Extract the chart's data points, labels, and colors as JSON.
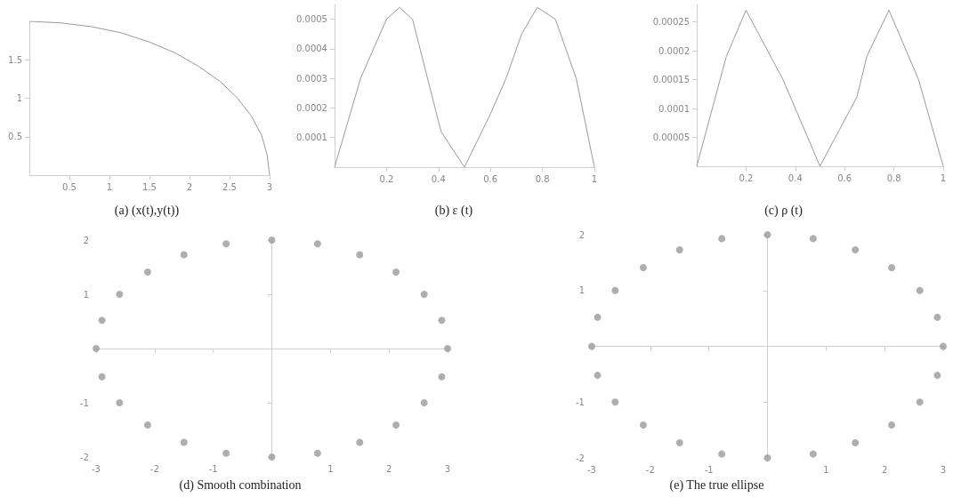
{
  "chart_data": [
    {
      "type": "line",
      "title": "(a) (x(t),y(t))",
      "color": "#9a9a9a",
      "xlim": [
        0,
        3
      ],
      "ylim": [
        0,
        2
      ],
      "xticks": [
        0.5,
        1,
        1.5,
        2,
        2.5,
        3
      ],
      "yticks": [
        0.5,
        1,
        1.5
      ],
      "x": [
        0,
        0.39,
        0.78,
        1.15,
        1.5,
        1.82,
        2.12,
        2.38,
        2.6,
        2.77,
        2.9,
        2.97,
        3
      ],
      "values": [
        2,
        1.98,
        1.93,
        1.85,
        1.73,
        1.59,
        1.41,
        1.22,
        1,
        0.77,
        0.52,
        0.26,
        0
      ]
    },
    {
      "type": "line",
      "title": "(b) ε (t)",
      "color": "#9a9a9a",
      "xlim": [
        0,
        1
      ],
      "ylim": [
        0,
        0.00055
      ],
      "xticks": [
        0.2,
        0.4,
        0.6,
        0.8,
        1
      ],
      "yticks": [
        0.0001,
        0.0002,
        0.0003,
        0.0004,
        0.0005
      ],
      "x": [
        0,
        0.1,
        0.2,
        0.25,
        0.3,
        0.41,
        0.5,
        0.6,
        0.66,
        0.72,
        0.78,
        0.85,
        0.93,
        1
      ],
      "values": [
        0,
        0.0003,
        0.0005,
        0.00054,
        0.0005,
        0.00012,
        0,
        0.00018,
        0.0003,
        0.00045,
        0.00054,
        0.0005,
        0.0003,
        0
      ]
    },
    {
      "type": "line",
      "title": "(c) ρ (t)",
      "color": "#9a9a9a",
      "xlim": [
        0,
        1
      ],
      "ylim": [
        0,
        0.00028
      ],
      "xticks": [
        0.2,
        0.4,
        0.6,
        0.8,
        1
      ],
      "yticks": [
        {
          "value": 5e-05,
          "label": "0.00005"
        },
        0.0001,
        0.00015,
        0.0002,
        0.00025
      ],
      "x": [
        0,
        0.12,
        0.2,
        0.35,
        0.5,
        0.65,
        0.69,
        0.78,
        0.9,
        1
      ],
      "values": [
        0,
        0.00019,
        0.00027,
        0.00015,
        0,
        0.00012,
        0.00019,
        0.00027,
        0.00015,
        0
      ]
    },
    {
      "type": "scatter",
      "marker": "circle",
      "title": "(d) Smooth combination",
      "color": "#9a9a9a",
      "xlim": [
        -3,
        3
      ],
      "ylim": [
        -2,
        2
      ],
      "xticks": [
        -3,
        -2,
        -1,
        1,
        2,
        3
      ],
      "yticks": [
        -2,
        -1,
        1,
        2
      ],
      "x": [
        3,
        2.9,
        2.6,
        2.12,
        1.5,
        0.78,
        0,
        -0.78,
        -1.5,
        -2.12,
        -2.6,
        -2.9,
        -3,
        -2.9,
        -2.6,
        -2.12,
        -1.5,
        -0.78,
        0,
        0.78,
        1.5,
        2.12,
        2.6,
        2.9
      ],
      "values": [
        0,
        0.52,
        1,
        1.41,
        1.73,
        1.93,
        2,
        1.93,
        1.73,
        1.41,
        1,
        0.52,
        0,
        -0.52,
        -1,
        -1.41,
        -1.73,
        -1.93,
        -2,
        -1.93,
        -1.73,
        -1.41,
        -1,
        -0.52
      ]
    },
    {
      "type": "scatter",
      "marker": "circle",
      "title": "(e) The true ellipse",
      "color": "#9a9a9a",
      "xlim": [
        -3,
        3
      ],
      "ylim": [
        -2,
        2
      ],
      "xticks": [
        -3,
        -2,
        -1,
        1,
        2,
        3
      ],
      "yticks": [
        -2,
        -1,
        1,
        2
      ],
      "x": [
        3,
        2.9,
        2.6,
        2.12,
        1.5,
        0.78,
        0,
        -0.78,
        -1.5,
        -2.12,
        -2.6,
        -2.9,
        -3,
        -2.9,
        -2.6,
        -2.12,
        -1.5,
        -0.78,
        0,
        0.78,
        1.5,
        2.12,
        2.6,
        2.9
      ],
      "values": [
        0,
        0.52,
        1,
        1.41,
        1.73,
        1.93,
        2,
        1.93,
        1.73,
        1.41,
        1,
        0.52,
        0,
        -0.52,
        -1,
        -1.41,
        -1.73,
        -1.93,
        -2,
        -1.93,
        -1.73,
        -1.41,
        -1,
        -0.52
      ]
    }
  ]
}
